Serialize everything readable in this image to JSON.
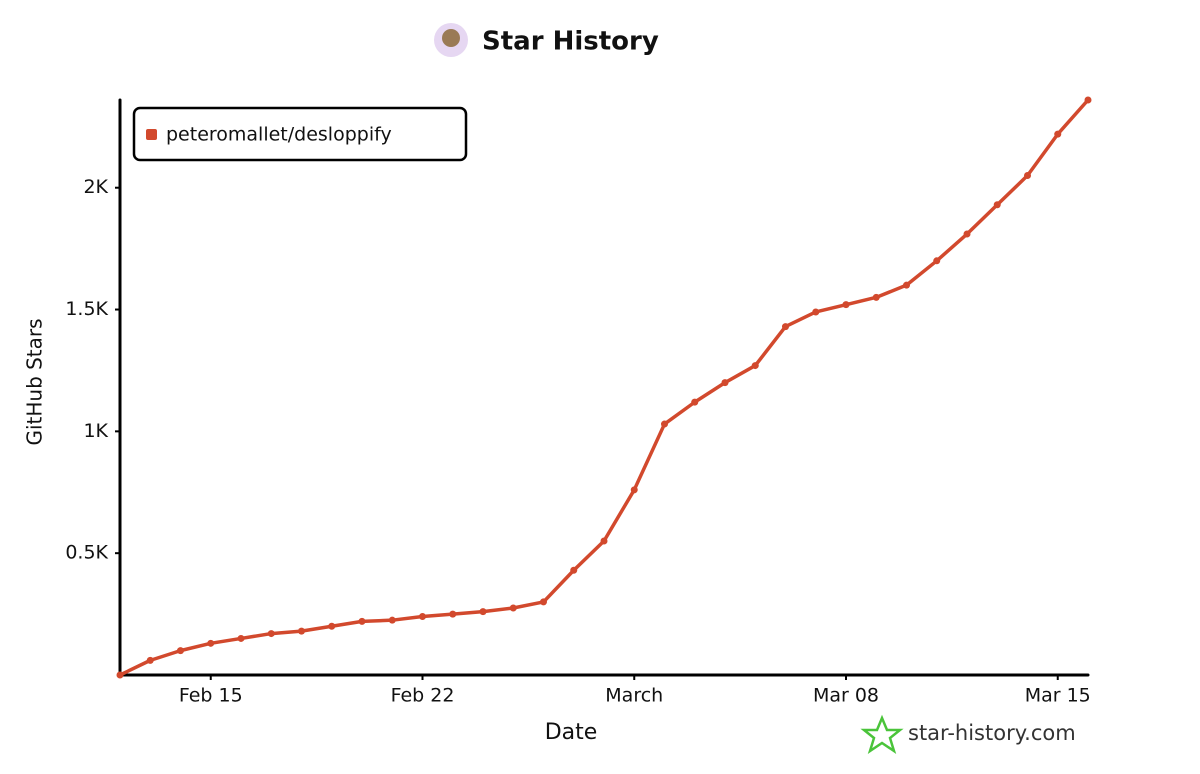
{
  "chart_data": {
    "type": "line",
    "title": "Star History",
    "x_label": "Date",
    "y_label": "GitHub Stars",
    "footer": "star-history.com",
    "x": [
      "Feb 12",
      "Feb 13",
      "Feb 14",
      "Feb 15",
      "Feb 16",
      "Feb 17",
      "Feb 18",
      "Feb 19",
      "Feb 20",
      "Feb 21",
      "Feb 22",
      "Feb 23",
      "Feb 24",
      "Feb 25",
      "Feb 26",
      "Feb 27",
      "Feb 28",
      "Mar 01",
      "Mar 02",
      "Mar 03",
      "Mar 04",
      "Mar 05",
      "Mar 06",
      "Mar 07",
      "Mar 08",
      "Mar 09",
      "Mar 10",
      "Mar 11",
      "Mar 12",
      "Mar 13",
      "Mar 14",
      "Mar 15",
      "Mar 16"
    ],
    "series": [
      {
        "name": "peteromallet/desloppify",
        "color": "#d2492d",
        "values": [
          0,
          60,
          100,
          130,
          150,
          170,
          180,
          200,
          220,
          225,
          240,
          250,
          260,
          275,
          300,
          430,
          550,
          760,
          1030,
          1120,
          1200,
          1270,
          1430,
          1490,
          1520,
          1550,
          1600,
          1700,
          1810,
          1930,
          2050,
          2220,
          2360
        ]
      }
    ],
    "xlim": [
      "Feb 12",
      "Mar 16"
    ],
    "xticks": [
      "Feb 15",
      "Feb 22",
      {
        "value": "Mar 01",
        "label": "March"
      },
      "Mar 08",
      "Mar 15"
    ],
    "ylim": [
      0,
      2360
    ],
    "yticks": [
      {
        "value": 500,
        "label": "0.5K"
      },
      {
        "value": 1000,
        "label": "1K"
      },
      {
        "value": 1500,
        "label": "1.5K"
      },
      {
        "value": 2000,
        "label": "2K"
      }
    ],
    "legend": "top-left"
  }
}
